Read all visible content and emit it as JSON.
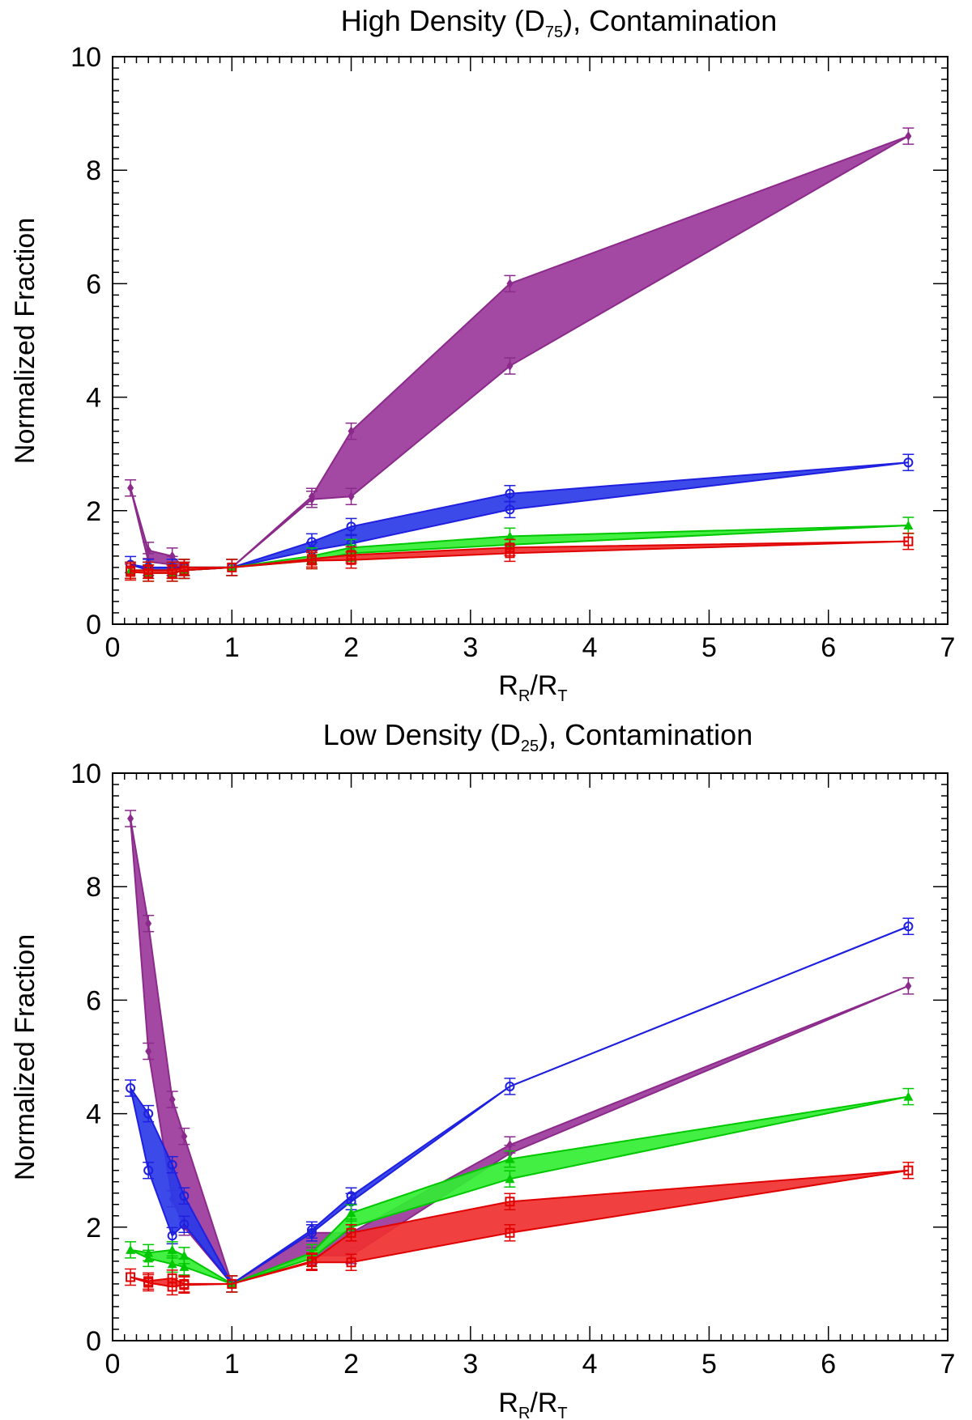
{
  "chart_data": [
    {
      "type": "area",
      "title_main": "High Density (D",
      "title_sub": "75",
      "title_tail": "), Contamination",
      "xlabel_main": "R",
      "xlabel_sub1": "R",
      "xlabel_mid": "/R",
      "xlabel_sub2": "T",
      "ylabel": "Normalized Fraction",
      "xlim": [
        0,
        7
      ],
      "ylim": [
        0,
        10
      ],
      "xticks": [
        0,
        1,
        2,
        3,
        4,
        5,
        6,
        7
      ],
      "yticks": [
        0,
        2,
        4,
        6,
        8,
        10
      ],
      "xtick_labels": [
        "0",
        "1",
        "2",
        "3",
        "4",
        "5",
        "6",
        "7"
      ],
      "ytick_labels": [
        "0",
        "2",
        "4",
        "6",
        "8",
        "10"
      ],
      "x": [
        0.15,
        0.3,
        0.5,
        0.6,
        1.0,
        1.67,
        2.0,
        3.33,
        6.67
      ],
      "series": [
        {
          "color": "#8B2A8B",
          "fill": "#9B3A9B",
          "marker": "diamond",
          "upper": [
            2.4,
            1.3,
            1.2,
            1.0,
            1.0,
            2.25,
            3.4,
            6.0,
            8.6
          ],
          "lower": [
            2.4,
            1.1,
            1.05,
            0.95,
            1.0,
            2.2,
            2.25,
            4.55,
            8.6
          ]
        },
        {
          "color": "#1F1FE0",
          "fill": "#2B3BE8",
          "marker": "circle",
          "upper": [
            1.05,
            1.0,
            1.0,
            1.0,
            1.0,
            1.45,
            1.72,
            2.3,
            2.85
          ],
          "lower": [
            1.05,
            0.95,
            0.95,
            0.95,
            1.0,
            1.3,
            1.42,
            2.02,
            2.85
          ]
        },
        {
          "color": "#00C800",
          "fill": "#33EE33",
          "marker": "triangle",
          "upper": [
            0.95,
            0.95,
            0.95,
            1.0,
            1.0,
            1.2,
            1.35,
            1.55,
            1.74
          ],
          "lower": [
            0.95,
            0.9,
            0.9,
            0.95,
            1.0,
            1.12,
            1.25,
            1.4,
            1.74
          ]
        },
        {
          "color": "#E00000",
          "fill": "#F03030",
          "marker": "square",
          "upper": [
            0.95,
            0.95,
            0.95,
            1.0,
            1.0,
            1.15,
            1.22,
            1.35,
            1.46
          ],
          "lower": [
            0.92,
            0.9,
            0.9,
            0.95,
            1.0,
            1.12,
            1.13,
            1.25,
            1.46
          ]
        }
      ]
    },
    {
      "type": "area",
      "title_main": "Low Density (D",
      "title_sub": "25",
      "title_tail": "), Contamination",
      "xlabel_main": "R",
      "xlabel_sub1": "R",
      "xlabel_mid": "/R",
      "xlabel_sub2": "T",
      "ylabel": "Normalized Fraction",
      "xlim": [
        0,
        7
      ],
      "ylim": [
        0,
        10
      ],
      "xticks": [
        0,
        1,
        2,
        3,
        4,
        5,
        6,
        7
      ],
      "yticks": [
        0,
        2,
        4,
        6,
        8,
        10
      ],
      "xtick_labels": [
        "0",
        "1",
        "2",
        "3",
        "4",
        "5",
        "6",
        "7"
      ],
      "ytick_labels": [
        "0",
        "2",
        "4",
        "6",
        "8",
        "10"
      ],
      "x": [
        0.15,
        0.3,
        0.5,
        0.6,
        1.0,
        1.67,
        2.0,
        3.33,
        6.67
      ],
      "series": [
        {
          "color": "#8B2A8B",
          "fill": "#9B3A9B",
          "marker": "diamond",
          "upper": [
            9.2,
            7.35,
            4.25,
            3.6,
            1.0,
            1.9,
            1.9,
            3.45,
            6.25
          ],
          "lower": [
            9.2,
            5.1,
            2.5,
            2.0,
            1.0,
            1.5,
            1.5,
            3.3,
            6.25
          ]
        },
        {
          "color": "#1F1FE0",
          "fill": "#2B3BE8",
          "marker": "circle",
          "upper": [
            4.45,
            4.0,
            3.1,
            2.55,
            1.0,
            1.95,
            2.55,
            4.48,
            7.3
          ],
          "lower": [
            4.45,
            3.0,
            1.85,
            2.05,
            1.0,
            1.9,
            2.45,
            4.48,
            7.3
          ]
        },
        {
          "color": "#00C800",
          "fill": "#33EE33",
          "marker": "triangle",
          "upper": [
            1.6,
            1.55,
            1.6,
            1.5,
            1.0,
            1.55,
            2.25,
            3.2,
            4.3
          ],
          "lower": [
            1.6,
            1.45,
            1.35,
            1.3,
            1.0,
            1.45,
            2.0,
            2.85,
            4.3
          ]
        },
        {
          "color": "#E00000",
          "fill": "#F03030",
          "marker": "square",
          "upper": [
            1.12,
            1.05,
            1.1,
            1.0,
            1.0,
            1.4,
            1.9,
            2.45,
            3.0
          ],
          "lower": [
            1.12,
            1.02,
            0.95,
            0.98,
            1.0,
            1.38,
            1.38,
            1.9,
            3.0
          ]
        }
      ]
    }
  ]
}
